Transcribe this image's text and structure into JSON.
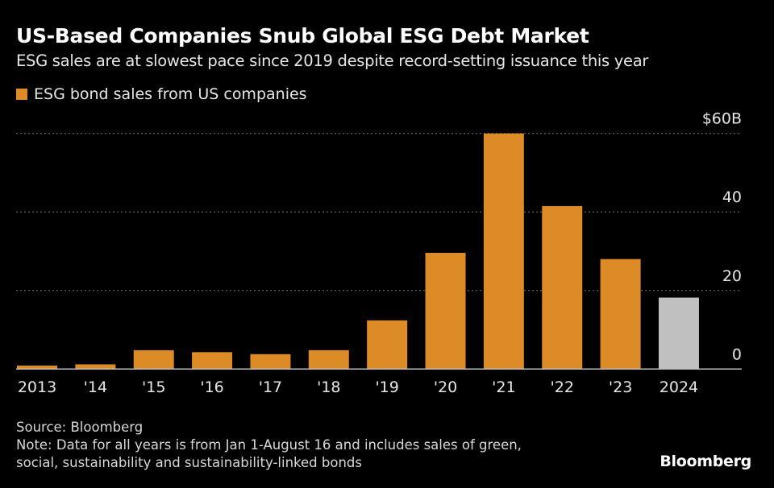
{
  "title": "US-Based Companies Snub Global ESG Debt Market",
  "subtitle": "ESG sales are at slowest pace since 2019 despite record-setting issuance this year",
  "source": "Source: Bloomberg",
  "note_line1": "Note: Data for all years is from Jan 1-August 16 and includes sales of green,",
  "note_line2": "social, sustainability and sustainability-linked bonds",
  "logo": "Bloomberg",
  "chart_data": {
    "type": "bar",
    "title": "US-Based Companies Snub Global ESG Debt Market",
    "categories": [
      "2013",
      "'14",
      "'15",
      "'16",
      "'17",
      "'18",
      "'19",
      "'20",
      "'21",
      "'22",
      "'23",
      "2024"
    ],
    "series": [
      {
        "name": "ESG bond sales from US companies",
        "values": [
          0.9,
          1.2,
          4.8,
          4.3,
          3.8,
          4.8,
          12.4,
          29.6,
          60,
          41.5,
          28.0,
          18.2
        ],
        "color": "#dc8b26"
      }
    ],
    "highlight": {
      "category": "2024",
      "color": "#c0c0c0"
    },
    "yticks": [
      {
        "value": 0,
        "label": "0"
      },
      {
        "value": 20,
        "label": "20"
      },
      {
        "value": 40,
        "label": "40"
      },
      {
        "value": 60,
        "label": "$60B"
      }
    ],
    "ylim": [
      0,
      60
    ],
    "unit": "$B",
    "grid": true,
    "yaxis_side": "right",
    "legend_placement": "top-left"
  }
}
